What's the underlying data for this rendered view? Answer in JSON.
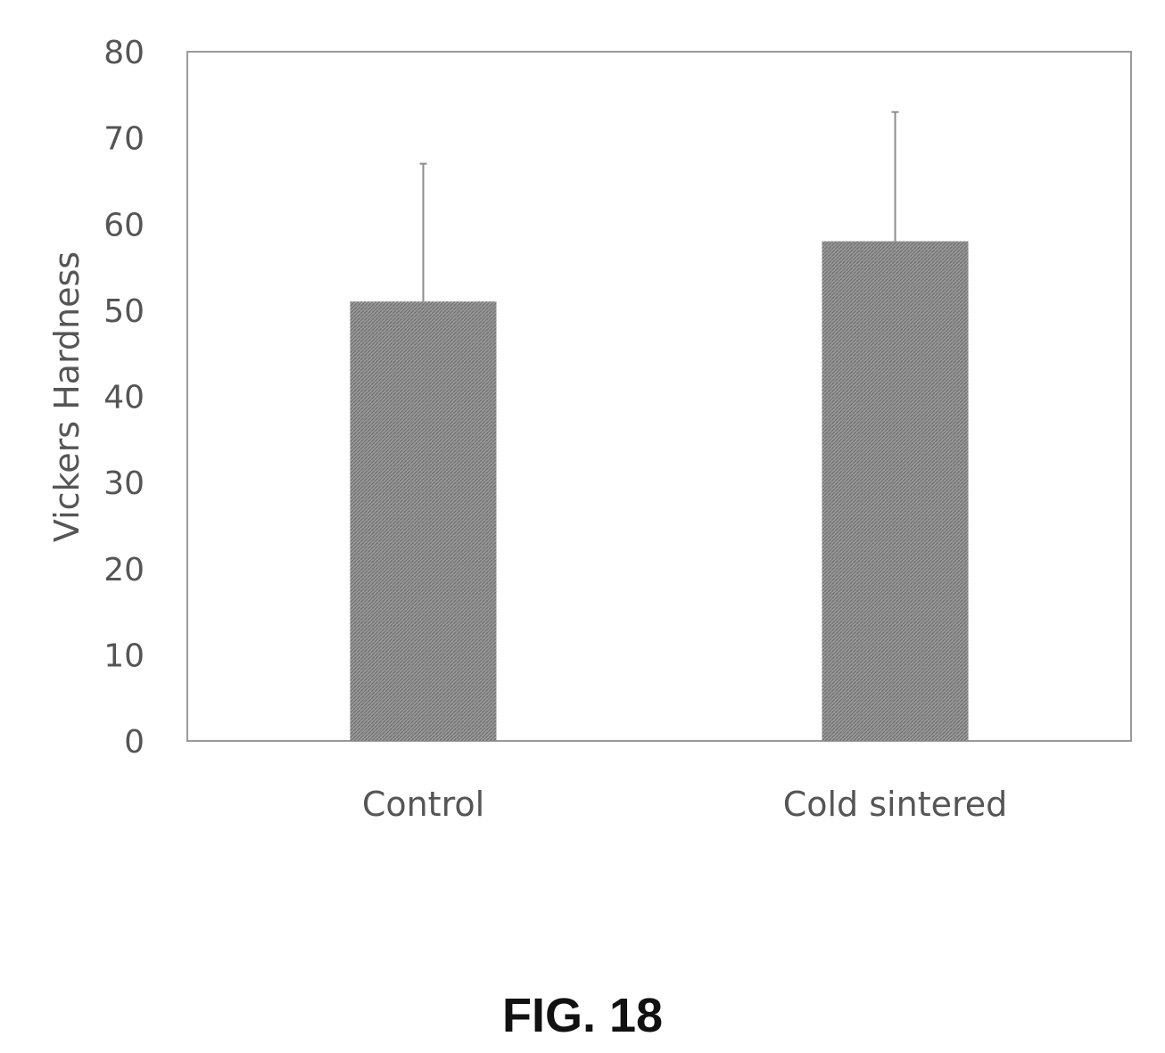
{
  "chart_data": {
    "type": "bar",
    "categories": [
      "Control",
      "Cold sintered"
    ],
    "values": [
      51,
      58
    ],
    "error_upper": [
      67,
      73
    ],
    "ylabel": "Vickers Hardness",
    "xlabel": "",
    "ylim": [
      0,
      80
    ],
    "yticks": [
      "0",
      "10",
      "20",
      "30",
      "40",
      "50",
      "60",
      "70",
      "80"
    ],
    "grid": false,
    "bar_color": "#8a8a8a",
    "axis_color": "#555555"
  },
  "caption": "FIG. 18"
}
